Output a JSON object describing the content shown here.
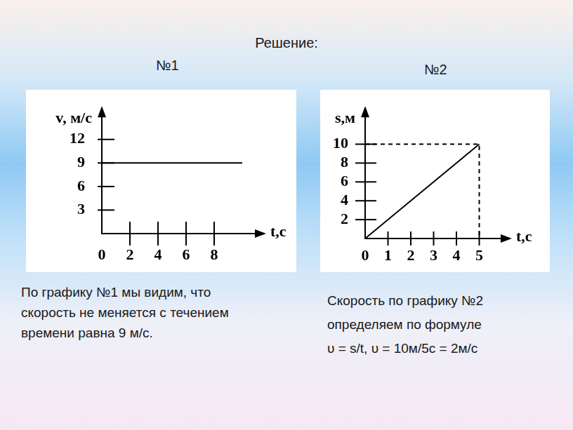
{
  "heading": "Решение:",
  "chart_data": [
    {
      "type": "line",
      "title": "№1",
      "x_label": "t,с",
      "y_label": "v, м/с",
      "x": [
        0,
        10
      ],
      "values": [
        9,
        9
      ],
      "color": "#000000",
      "xlim": [
        0,
        11
      ],
      "xticks": [
        0,
        2,
        4,
        6,
        8
      ],
      "ylim": [
        0,
        15
      ],
      "yticks": [
        3,
        6,
        9,
        12
      ],
      "grid": false,
      "annotations": [
        "По графику №1 мы видим, что",
        "скорость не меняется с течением",
        "времени равна 9 м/с."
      ]
    },
    {
      "type": "line",
      "title": "№2",
      "x_label": "t,с",
      "y_label": "s,м",
      "series": [
        {
          "color": "#000000",
          "line_style": "solid",
          "x": [
            0,
            5
          ],
          "values": [
            0,
            10
          ]
        },
        {
          "color": "#000000",
          "line_style": "dashed",
          "x": [
            0,
            5,
            5
          ],
          "values": [
            10,
            10,
            0
          ]
        }
      ],
      "xlim": [
        0,
        6
      ],
      "xticks": [
        0,
        1,
        2,
        3,
        4,
        5
      ],
      "ylim": [
        0,
        13
      ],
      "yticks": [
        2,
        4,
        6,
        8,
        10
      ],
      "grid": false,
      "annotations": [
        "Скорость по графику №2",
        "определяем по формуле",
        "υ = s/t, υ = 10м/5с = 2м/с"
      ]
    }
  ]
}
